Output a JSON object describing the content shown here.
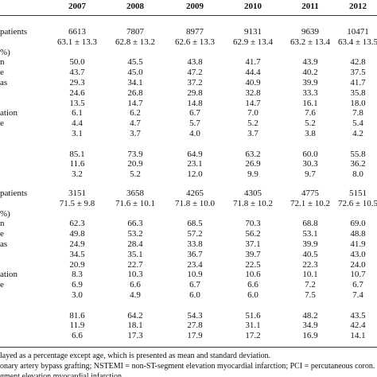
{
  "table": {
    "columns": [
      "2007",
      "2008",
      "2009",
      "2010",
      "2011",
      "2012"
    ],
    "sections": [
      {
        "rows": [
          {
            "label": "patients",
            "cells": [
              "6613",
              "7807",
              "8977",
              "9131",
              "9639",
              "10471"
            ]
          },
          {
            "cells": [
              "63.1 ± 13.3",
              "62.8 ± 13.2",
              "62.6 ± 13.3",
              "62.9 ± 13.4",
              "63.2 ± 13.4",
              "63.4 ± 13.5"
            ]
          },
          {
            "label": "%)"
          },
          {
            "label": "n",
            "cells": [
              "50.0",
              "45.5",
              "43.8",
              "41.7",
              "43.9",
              "42.8"
            ]
          },
          {
            "label": "e",
            "cells": [
              "43.7",
              "45.0",
              "47.2",
              "44.4",
              "40.2",
              "37.5"
            ]
          },
          {
            "label": "as",
            "cells": [
              "29.3",
              "34.1",
              "37.2",
              "40.9",
              "39.9",
              "41.7"
            ]
          },
          {
            "cells": [
              "24.6",
              "26.8",
              "29.8",
              "32.8",
              "33.3",
              "35.8"
            ]
          },
          {
            "cells": [
              "13.5",
              "14.7",
              "14.8",
              "14.7",
              "16.1",
              "18.0"
            ]
          },
          {
            "label": "ation",
            "cells": [
              "6.1",
              "6.2",
              "6.7",
              "7.0",
              "7.6",
              "7.8"
            ]
          },
          {
            "label": "e",
            "cells": [
              "4.4",
              "4.7",
              "5.7",
              "5.2",
              "5.2",
              "5.4"
            ]
          },
          {
            "cells": [
              "3.1",
              "3.7",
              "4.0",
              "3.7",
              "3.8",
              "4.2"
            ]
          },
          {
            "cells": [
              "85.1",
              "73.9",
              "64.9",
              "63.2",
              "60.0",
              "55.8"
            ]
          },
          {
            "cells": [
              "11.6",
              "20.9",
              "23.1",
              "26.9",
              "30.3",
              "36.2"
            ]
          },
          {
            "cells": [
              "3.2",
              "5.2",
              "12.0",
              "9.9",
              "9.7",
              "8.0"
            ]
          }
        ]
      },
      {
        "rows": [
          {
            "label": "patients",
            "cells": [
              "3151",
              "3658",
              "4265",
              "4305",
              "4775",
              "5151"
            ]
          },
          {
            "cells": [
              "71.5 ± 9.8",
              "71.6 ± 10.1",
              "71.8 ± 10.0",
              "71.8 ± 10.2",
              "72.1 ± 10.2",
              "72.6 ± 10.5"
            ]
          },
          {
            "label": "%)"
          },
          {
            "label": "n",
            "cells": [
              "62.3",
              "66.3",
              "68.5",
              "70.3",
              "68.8",
              "69.0"
            ]
          },
          {
            "label": "e",
            "cells": [
              "49.8",
              "53.2",
              "57.2",
              "56.2",
              "53.1",
              "48.8"
            ]
          },
          {
            "label": "as",
            "cells": [
              "24.9",
              "28.4",
              "33.8",
              "37.1",
              "39.9",
              "41.9"
            ]
          },
          {
            "cells": [
              "34.5",
              "35.1",
              "36.7",
              "39.7",
              "40.5",
              "43.0"
            ]
          },
          {
            "cells": [
              "20.9",
              "22.7",
              "23.4",
              "22.5",
              "22.3",
              "24.0"
            ]
          },
          {
            "label": "ation",
            "cells": [
              "8.3",
              "10.3",
              "10.9",
              "10.6",
              "10.1",
              "10.7"
            ]
          },
          {
            "label": "e",
            "cells": [
              "6.9",
              "6.6",
              "6.7",
              "6.6",
              "7.2",
              "6.7"
            ]
          },
          {
            "cells": [
              "3.0",
              "4.9",
              "6.0",
              "6.0",
              "7.5",
              "7.4"
            ]
          },
          {
            "cells": [
              "81.6",
              "64.2",
              "54.3",
              "51.6",
              "48.2",
              "43.5"
            ]
          },
          {
            "cells": [
              "11.9",
              "18.1",
              "27.8",
              "31.1",
              "34.9",
              "42.4"
            ]
          },
          {
            "cells": [
              "6.6",
              "17.3",
              "17.9",
              "17.2",
              "16.9",
              "14.1"
            ]
          }
        ]
      }
    ],
    "footnotes": [
      "layed as a percentage except age, which is presented as mean and standard deviation.",
      "onary artery bypass grafting; NSTEMI = non-ST-segment elevation myocardial infarction; PCI = percutaneous coron.",
      "gment elevation myocardial infarction."
    ]
  }
}
